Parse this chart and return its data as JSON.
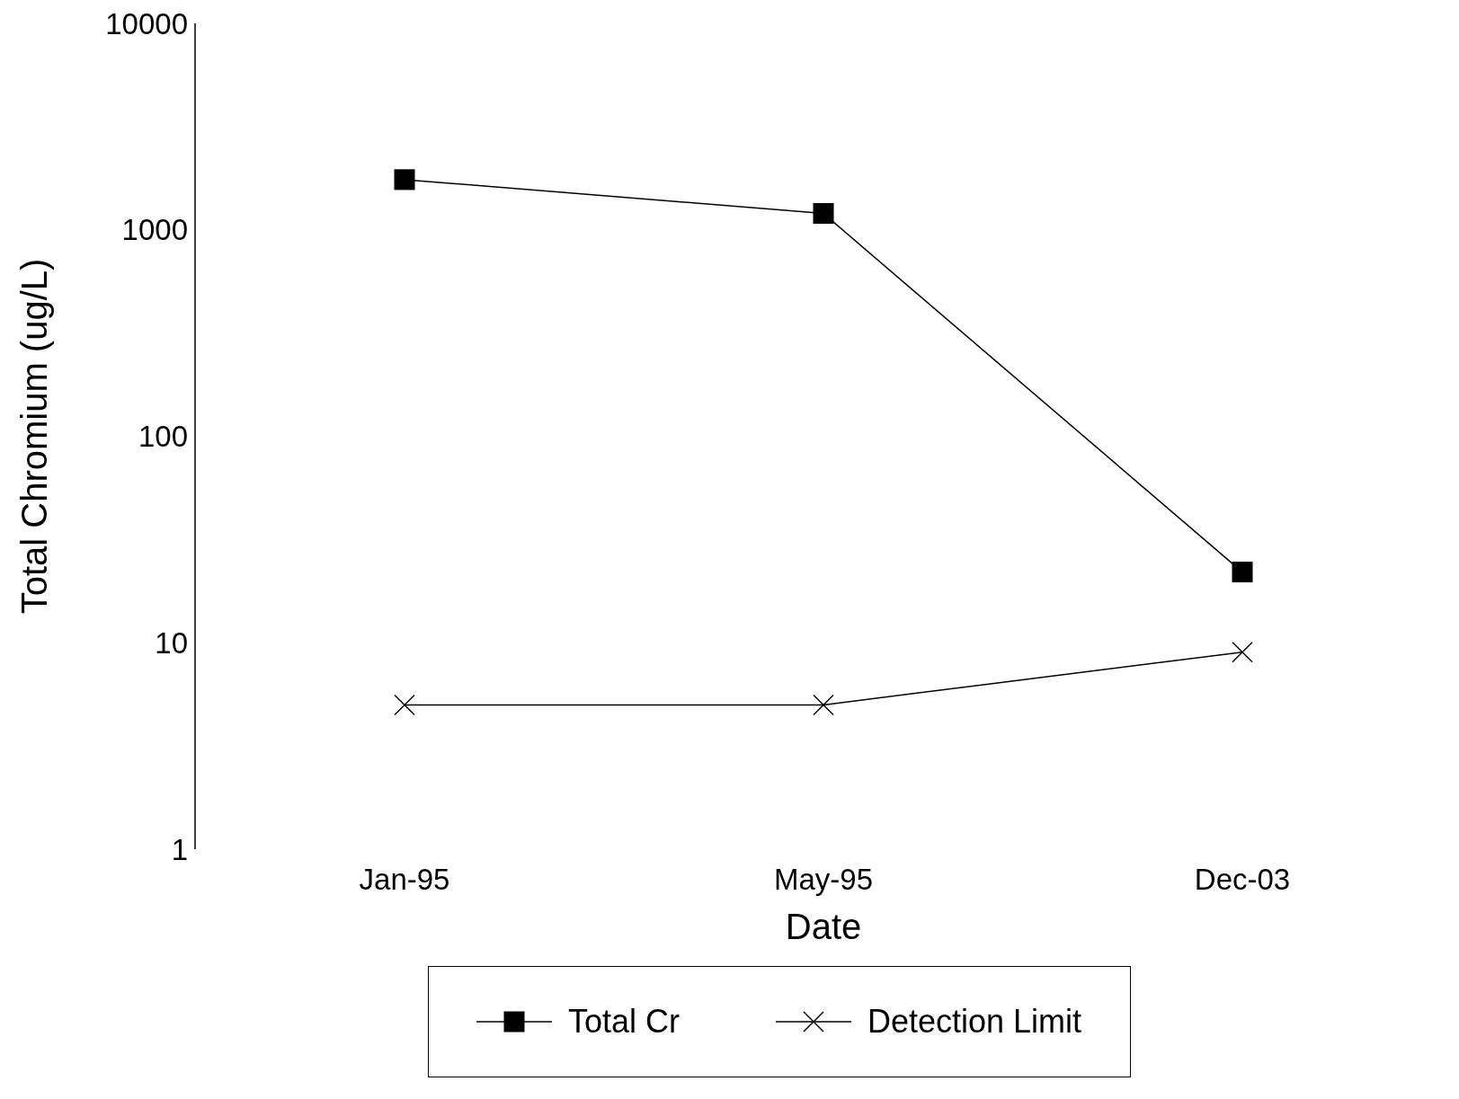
{
  "chart_data": {
    "type": "line",
    "xlabel": "Date",
    "ylabel": "Total Chromium (ug/L)",
    "categories": [
      "Jan-95",
      "May-95",
      "Dec-03"
    ],
    "series": [
      {
        "name": "Total Cr",
        "color": "#000000",
        "marker": "square",
        "values": [
          1750,
          1200,
          22
        ]
      },
      {
        "name": "Detection Limit",
        "color": "#000000",
        "marker": "cross",
        "values": [
          5,
          5,
          9
        ]
      }
    ],
    "log": "y",
    "ylim": [
      1,
      10000
    ],
    "yticks": [
      1,
      10,
      100,
      1000,
      10000
    ],
    "grid": false,
    "legend": "bottom",
    "line_style": "solid"
  }
}
